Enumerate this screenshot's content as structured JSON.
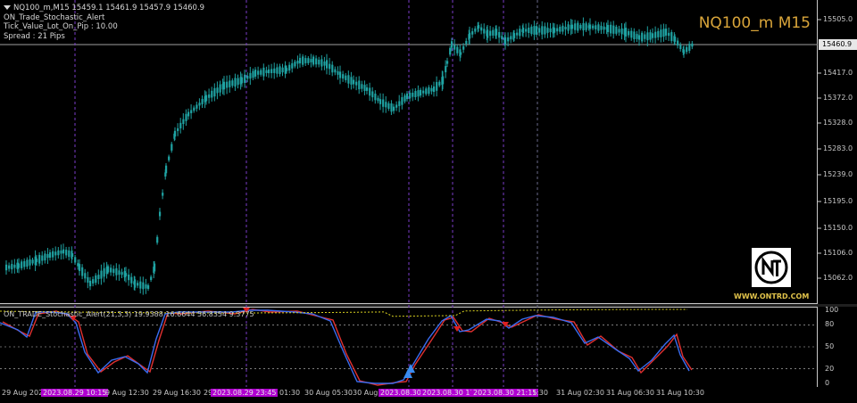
{
  "header": {
    "symbol_line": "NQ100_m,M15  15459.1 15461.9 15457.9 15460.9",
    "indicator_name": "ON_Trade_Stochastic_Alert",
    "tick_value": "Tick_Value_Lot_On_Pip : 10.00",
    "spread": "Spread : 21  Pips"
  },
  "symbol_title": "NQ100_m M15",
  "watermark": {
    "site": "WWW.ONTRD.COM"
  },
  "price_axis": {
    "ticks": [
      "15505.0",
      "15417.0",
      "15372.0",
      "15328.0",
      "15283.0",
      "15239.0",
      "15195.0",
      "15150.0",
      "15106.0",
      "15062.0"
    ],
    "current_price": "15460.9"
  },
  "stoch_pane": {
    "label": "ON_TRADE_Stochastic_Alert(21,3,3) 19.9388 16.6644 56.8354 9.3775",
    "levels": [
      "100",
      "80",
      "50",
      "20",
      "0"
    ]
  },
  "time_axis": {
    "labels": [
      {
        "text": "29 Aug 2023",
        "hl": false
      },
      {
        "text": "2023.08.29 10:15",
        "hl": true
      },
      {
        "text": "9 Aug 12:30",
        "hl": false
      },
      {
        "text": "29 Aug 16:30",
        "hl": false
      },
      {
        "text": "29",
        "hl": false
      },
      {
        "text": "2023.08.29 23:45",
        "hl": true
      },
      {
        "text": "01:30",
        "hl": false
      },
      {
        "text": "30 Aug 05:30",
        "hl": false
      },
      {
        "text": "30 Aug 09:",
        "hl": false
      },
      {
        "text": "2023.08.30",
        "hl": true
      },
      {
        "text": "2023.08.30 17",
        "hl": true
      },
      {
        "text": "2023.08.30 21:15",
        "hl": true
      },
      {
        "text": "1:30",
        "hl": false
      },
      {
        "text": "31 Aug 02:30",
        "hl": false
      },
      {
        "text": "31 Aug 06:30",
        "hl": false
      },
      {
        "text": "31 Aug 10:30",
        "hl": false
      }
    ]
  },
  "colors": {
    "candle": "#1fa3a3",
    "stoch_k": "#3a6cf0",
    "stoch_d": "#e03030",
    "signal_line": "#d8d020",
    "vline": "#7a3cc8",
    "level_line": "#c8c8c8",
    "symbol_title": "#d9a53a",
    "buy_arrow": "#3a8cf0",
    "sell_arrow": "#e02020"
  }
}
